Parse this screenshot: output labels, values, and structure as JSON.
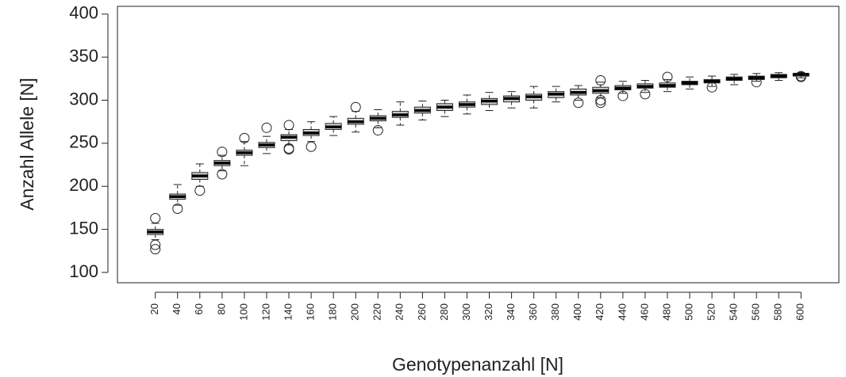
{
  "chart_data": {
    "type": "boxplot",
    "x_label": "Genotypenanzahl [N]",
    "y_label": "Anzahl Allele [N]",
    "categories": [
      20,
      40,
      60,
      80,
      100,
      120,
      140,
      160,
      180,
      200,
      220,
      240,
      260,
      280,
      300,
      320,
      340,
      360,
      380,
      400,
      420,
      440,
      460,
      480,
      500,
      520,
      540,
      560,
      580,
      600
    ],
    "boxes": [
      {
        "min": 138,
        "q1": 144,
        "median": 147,
        "q3": 150,
        "max": 157,
        "outliers": [
          163,
          132,
          127
        ]
      },
      {
        "min": 178,
        "q1": 185,
        "median": 188,
        "q3": 191,
        "max": 202,
        "outliers": [
          174
        ]
      },
      {
        "min": 200,
        "q1": 208,
        "median": 212,
        "q3": 216,
        "max": 226,
        "outliers": [
          195
        ]
      },
      {
        "min": 218,
        "q1": 224,
        "median": 227,
        "q3": 230,
        "max": 236,
        "outliers": [
          240,
          214
        ]
      },
      {
        "min": 224,
        "q1": 236,
        "median": 239,
        "q3": 242,
        "max": 252,
        "outliers": [
          256
        ]
      },
      {
        "min": 238,
        "q1": 245,
        "median": 248,
        "q3": 251,
        "max": 258,
        "outliers": [
          268
        ]
      },
      {
        "min": 248,
        "q1": 253,
        "median": 257,
        "q3": 260,
        "max": 266,
        "outliers": [
          271,
          244,
          243
        ]
      },
      {
        "min": 252,
        "q1": 259,
        "median": 262,
        "q3": 266,
        "max": 275,
        "outliers": [
          246
        ]
      },
      {
        "min": 259,
        "q1": 266,
        "median": 269,
        "q3": 273,
        "max": 281,
        "outliers": []
      },
      {
        "min": 263,
        "q1": 272,
        "median": 275,
        "q3": 279,
        "max": 287,
        "outliers": [
          292
        ]
      },
      {
        "min": 268,
        "q1": 276,
        "median": 279,
        "q3": 282,
        "max": 289,
        "outliers": [
          265
        ]
      },
      {
        "min": 271,
        "q1": 280,
        "median": 283,
        "q3": 287,
        "max": 298,
        "outliers": []
      },
      {
        "min": 277,
        "q1": 285,
        "median": 288,
        "q3": 292,
        "max": 299,
        "outliers": []
      },
      {
        "min": 281,
        "q1": 288,
        "median": 292,
        "q3": 296,
        "max": 300,
        "outliers": []
      },
      {
        "min": 284,
        "q1": 292,
        "median": 295,
        "q3": 298,
        "max": 306,
        "outliers": []
      },
      {
        "min": 288,
        "q1": 295,
        "median": 299,
        "q3": 302,
        "max": 309,
        "outliers": []
      },
      {
        "min": 291,
        "q1": 298,
        "median": 302,
        "q3": 305,
        "max": 310,
        "outliers": []
      },
      {
        "min": 291,
        "q1": 300,
        "median": 304,
        "q3": 307,
        "max": 316,
        "outliers": []
      },
      {
        "min": 298,
        "q1": 303,
        "median": 307,
        "q3": 310,
        "max": 316,
        "outliers": []
      },
      {
        "min": 300,
        "q1": 306,
        "median": 309,
        "q3": 313,
        "max": 317,
        "outliers": [
          297
        ]
      },
      {
        "min": 303,
        "q1": 308,
        "median": 311,
        "q3": 315,
        "max": 321,
        "outliers": [
          323,
          300,
          297
        ]
      },
      {
        "min": 308,
        "q1": 312,
        "median": 314,
        "q3": 317,
        "max": 322,
        "outliers": [
          305
        ]
      },
      {
        "min": 309,
        "q1": 314,
        "median": 316,
        "q3": 319,
        "max": 323,
        "outliers": [
          307
        ]
      },
      {
        "min": 310,
        "q1": 315,
        "median": 317,
        "q3": 320,
        "max": 324,
        "outliers": [
          327
        ]
      },
      {
        "min": 313,
        "q1": 318,
        "median": 320,
        "q3": 322,
        "max": 327,
        "outliers": []
      },
      {
        "min": 316,
        "q1": 320,
        "median": 322,
        "q3": 324,
        "max": 328,
        "outliers": [
          315
        ]
      },
      {
        "min": 318,
        "q1": 323,
        "median": 325,
        "q3": 327,
        "max": 330,
        "outliers": []
      },
      {
        "min": 322,
        "q1": 324,
        "median": 326,
        "q3": 328,
        "max": 331,
        "outliers": [
          321
        ]
      },
      {
        "min": 323,
        "q1": 326,
        "median": 328,
        "q3": 330,
        "max": 332,
        "outliers": []
      },
      {
        "min": 326,
        "q1": 328,
        "median": 330,
        "q3": 331,
        "max": 332,
        "outliers": [
          327,
          328
        ]
      }
    ],
    "box_color": "#d3d3d3",
    "ylim": [
      88,
      409
    ],
    "yticks": [
      100,
      150,
      200,
      250,
      300,
      350,
      400
    ]
  }
}
